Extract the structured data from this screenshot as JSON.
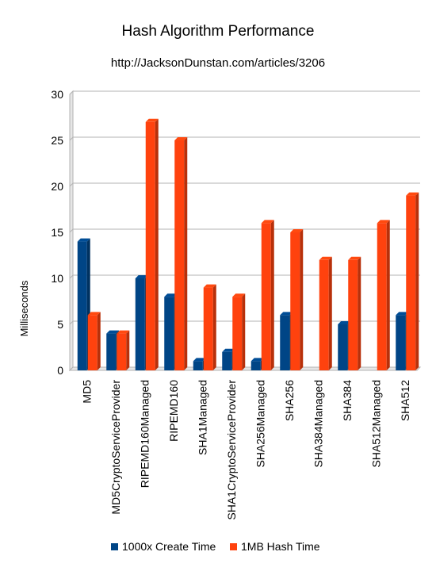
{
  "chart_data": {
    "type": "bar",
    "title": "Hash Algorithm Performance",
    "subtitle": "http://JacksonDunstan.com/articles/3206",
    "xlabel": "",
    "ylabel": "Milliseconds",
    "ylim": [
      0,
      30
    ],
    "yticks": [
      0,
      5,
      10,
      15,
      20,
      25,
      30
    ],
    "grid": true,
    "legend_position": "bottom",
    "categories": [
      "MD5",
      "MD5CryptoServiceProvider",
      "RIPEMD160Managed",
      "RIPEMD160",
      "SHA1Managed",
      "SHA1CryptoServiceProvider",
      "SHA256Managed",
      "SHA256",
      "SHA384Managed",
      "SHA384",
      "SHA512Managed",
      "SHA512"
    ],
    "series": [
      {
        "name": "1000x Create Time",
        "color": "#004586",
        "values": [
          14,
          4,
          10,
          8,
          1,
          2,
          1,
          6,
          0,
          5,
          0,
          6
        ]
      },
      {
        "name": "1MB Hash Time",
        "color": "#ff420e",
        "values": [
          6,
          4,
          27,
          25,
          9,
          8,
          16,
          15,
          12,
          12,
          16,
          19
        ]
      }
    ]
  }
}
